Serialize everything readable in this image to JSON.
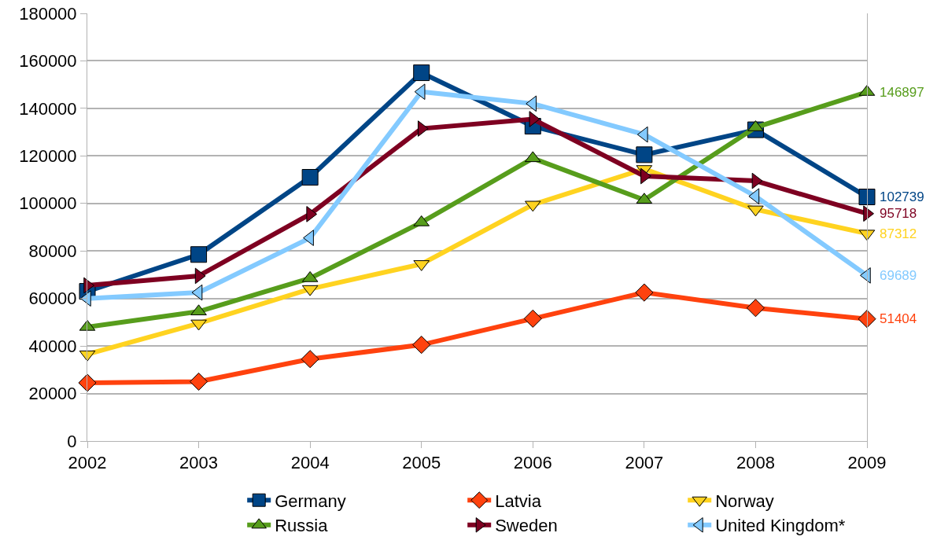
{
  "chart_data": {
    "type": "line",
    "x": [
      2002,
      2003,
      2004,
      2005,
      2006,
      2007,
      2008,
      2009
    ],
    "series": [
      {
        "name": "Germany",
        "color": "#004586",
        "marker": "square",
        "values": [
          63000,
          78500,
          111000,
          155000,
          132500,
          120500,
          131000,
          102739
        ],
        "value_labels": [
          null,
          null,
          null,
          null,
          null,
          null,
          null,
          "102739"
        ]
      },
      {
        "name": "Latvia",
        "color": "#ff420e",
        "marker": "diamond",
        "values": [
          24500,
          25000,
          34500,
          40500,
          51500,
          62500,
          56000,
          51404
        ],
        "value_labels": [
          null,
          null,
          null,
          null,
          null,
          null,
          null,
          "51404"
        ]
      },
      {
        "name": "Norway",
        "color": "#ffd320",
        "marker": "triangle-down",
        "values": [
          36500,
          49500,
          64000,
          74500,
          99500,
          114500,
          97500,
          87312
        ],
        "value_labels": [
          null,
          null,
          null,
          null,
          null,
          null,
          null,
          "87312"
        ]
      },
      {
        "name": "Russia",
        "color": "#579d1c",
        "marker": "triangle-up",
        "values": [
          48000,
          54500,
          68500,
          92000,
          119000,
          101500,
          132000,
          146897
        ],
        "value_labels": [
          null,
          null,
          null,
          null,
          null,
          null,
          null,
          "146897"
        ]
      },
      {
        "name": "Sweden",
        "color": "#7e0021",
        "marker": "triangle-right",
        "values": [
          65500,
          69500,
          95500,
          131500,
          135500,
          111500,
          109500,
          95718
        ],
        "value_labels": [
          null,
          null,
          null,
          null,
          null,
          null,
          null,
          "95718"
        ]
      },
      {
        "name": "United Kingdom*",
        "color": "#83caff",
        "marker": "triangle-left",
        "values": [
          60000,
          62500,
          85500,
          147000,
          142000,
          129000,
          103000,
          69689
        ],
        "value_labels": [
          null,
          null,
          null,
          null,
          null,
          null,
          null,
          "69689"
        ]
      }
    ],
    "xlim": [
      2002,
      2009
    ],
    "xticks": [
      2002,
      2003,
      2004,
      2005,
      2006,
      2007,
      2008,
      2009
    ],
    "ylim": [
      0,
      180000
    ],
    "yticks": [
      0,
      20000,
      40000,
      60000,
      80000,
      100000,
      120000,
      140000,
      160000,
      180000
    ],
    "grid": "y",
    "legend": "bottom",
    "line_style": "solid"
  }
}
